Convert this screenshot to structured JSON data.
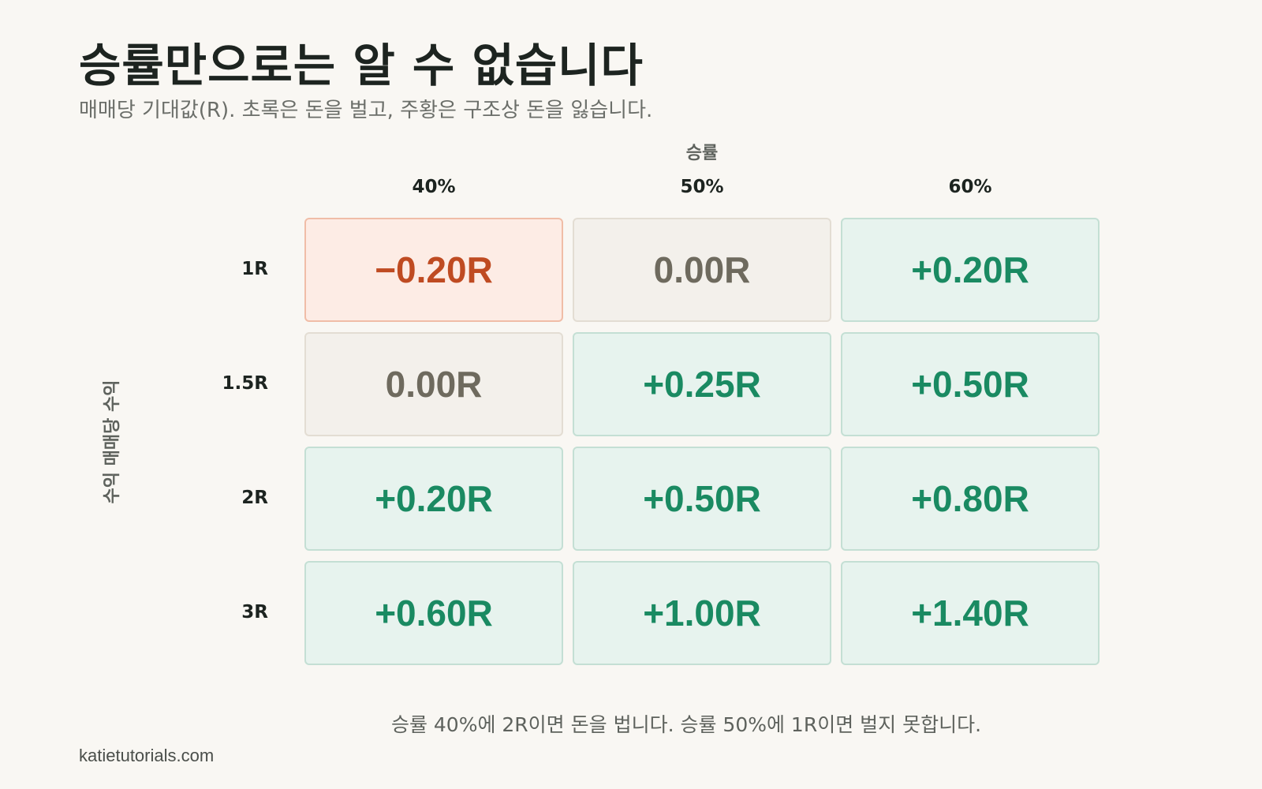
{
  "header": {
    "title": "승률만으로는 알 수 없습니다",
    "subtitle": "매매당 기대값(R). 초록은 돈을 벌고, 주황은 구조상 돈을 잃습니다."
  },
  "chart_data": {
    "type": "heatmap",
    "title": "승률만으로는 알 수 없습니다",
    "subtitle": "매매당 기대값(R). 초록은 돈을 벌고, 주황은 구조상 돈을 잃습니다.",
    "x_axis_title": "승률",
    "y_axis_title": "수익 매매당 수익",
    "x_categories": [
      "40%",
      "50%",
      "60%"
    ],
    "y_categories": [
      "1R",
      "1.5R",
      "2R",
      "3R"
    ],
    "values": [
      [
        -0.2,
        0.0,
        0.2
      ],
      [
        0.0,
        0.25,
        0.5
      ],
      [
        0.2,
        0.5,
        0.8
      ],
      [
        0.6,
        1.0,
        1.4
      ]
    ],
    "value_labels": [
      [
        "−0.20R",
        "0.00R",
        "+0.20R"
      ],
      [
        "0.00R",
        "+0.25R",
        "+0.50R"
      ],
      [
        "+0.20R",
        "+0.50R",
        "+0.80R"
      ],
      [
        "+0.60R",
        "+1.00R",
        "+1.40R"
      ]
    ],
    "colors": {
      "positive_fill": "#e7f3ee",
      "positive_border": "#c4dfd4",
      "positive_text": "#1a8a62",
      "negative_fill": "#fdece5",
      "negative_border": "#f0bda7",
      "negative_text": "#bf4b22",
      "zero_fill": "#f3f0eb",
      "zero_border": "#e3ddd3",
      "zero_text": "#6e6a5e"
    },
    "footnote": "승률 40%에 2R이면 돈을 법니다. 승률 50%에 1R이면 벌지 못합니다."
  },
  "footer": {
    "site": "katietutorials.com"
  }
}
